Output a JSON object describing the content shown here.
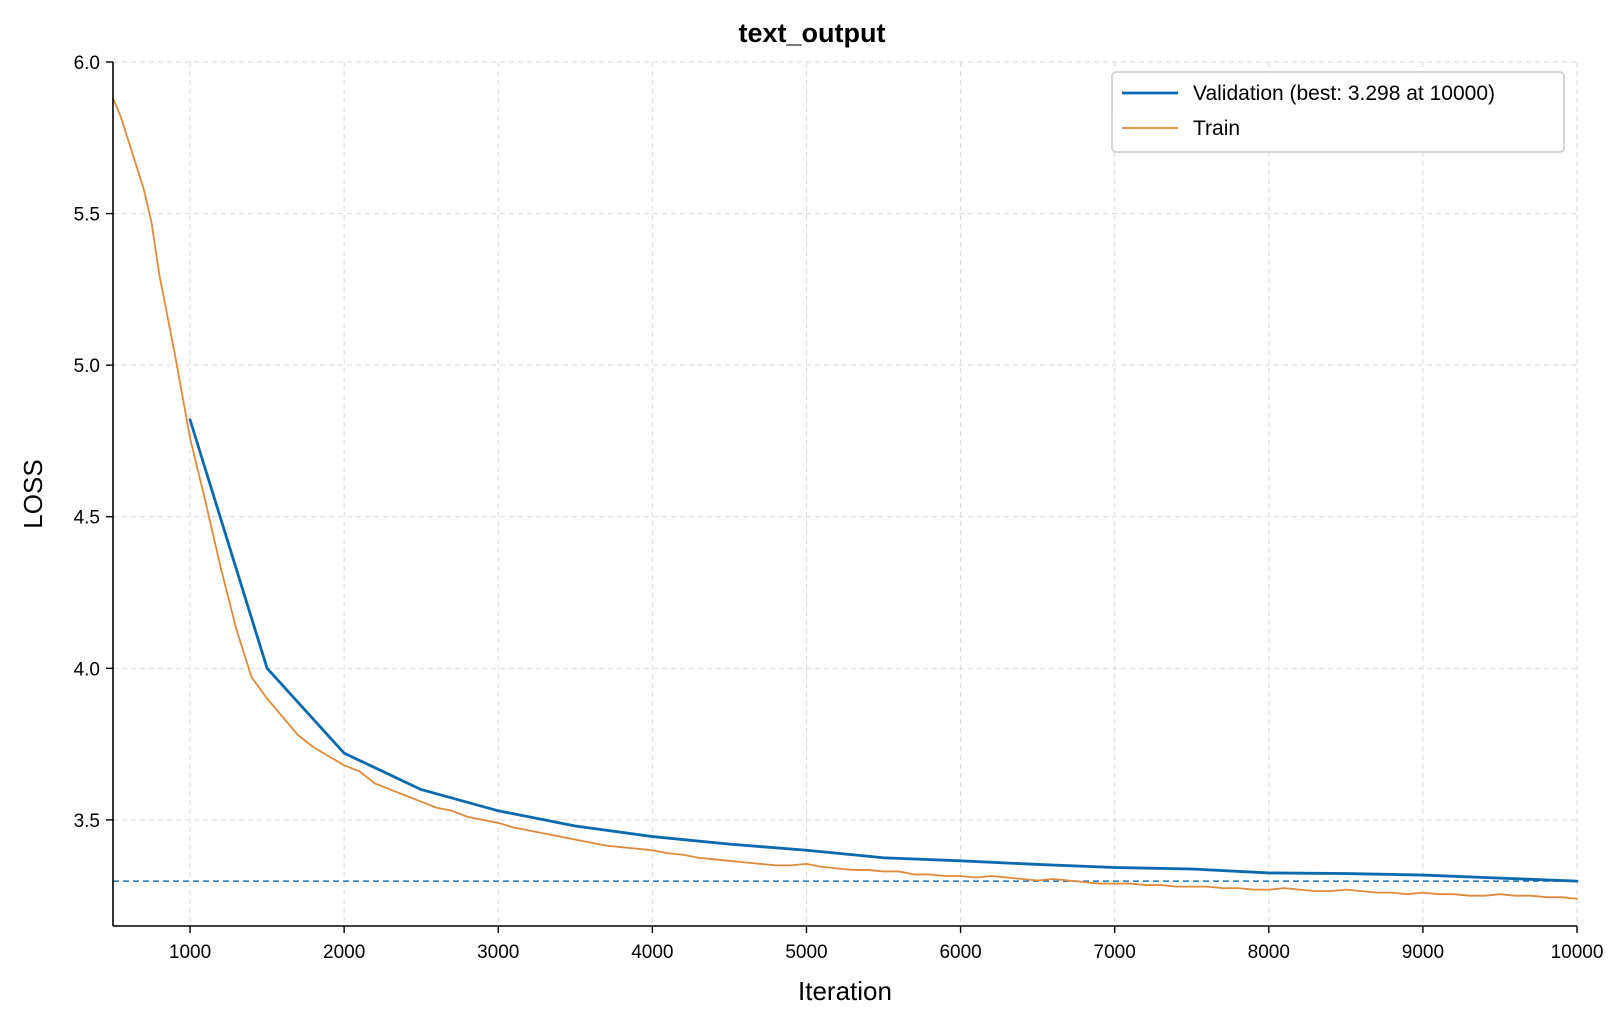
{
  "chart_data": {
    "type": "line",
    "title": "text_output",
    "xlabel": "Iteration",
    "ylabel": "LOSS",
    "xlim": [
      500,
      10000
    ],
    "ylim": [
      3.15,
      6.0
    ],
    "x_ticks": [
      1000,
      2000,
      3000,
      4000,
      5000,
      6000,
      7000,
      8000,
      9000,
      10000
    ],
    "y_ticks": [
      3.5,
      4.0,
      4.5,
      5.0,
      5.5,
      6.0
    ],
    "x_tick_labels": [
      "1000",
      "2000",
      "3000",
      "4000",
      "5000",
      "6000",
      "7000",
      "8000",
      "9000",
      "10000"
    ],
    "y_tick_labels": [
      "3.5",
      "4.0",
      "4.5",
      "5.0",
      "5.5",
      "6.0"
    ],
    "grid": true,
    "legend_position": "top-right",
    "reference_line": {
      "y": 3.298,
      "style": "dashed",
      "color": "#1f77b4"
    },
    "series": [
      {
        "name": "Validation (best: 3.298 at 10000)",
        "color": "#0b6aad",
        "x": [
          1000,
          1500,
          2000,
          2500,
          3000,
          3500,
          4000,
          4500,
          5000,
          5500,
          6000,
          6500,
          7000,
          7500,
          8000,
          8500,
          9000,
          9500,
          10000
        ],
        "y": [
          4.82,
          4.0,
          3.72,
          3.6,
          3.53,
          3.48,
          3.445,
          3.42,
          3.4,
          3.375,
          3.365,
          3.353,
          3.343,
          3.338,
          3.325,
          3.323,
          3.318,
          3.308,
          3.298
        ]
      },
      {
        "name": "Train",
        "color": "#e08a3c",
        "x": [
          500,
          550,
          600,
          650,
          700,
          750,
          800,
          850,
          900,
          950,
          1000,
          1100,
          1200,
          1300,
          1400,
          1500,
          1600,
          1700,
          1800,
          1900,
          2000,
          2100,
          2200,
          2300,
          2400,
          2500,
          2600,
          2700,
          2800,
          2900,
          3000,
          3100,
          3200,
          3300,
          3400,
          3500,
          3600,
          3700,
          3800,
          3900,
          4000,
          4100,
          4200,
          4300,
          4400,
          4500,
          4600,
          4700,
          4800,
          4900,
          5000,
          5100,
          5200,
          5300,
          5400,
          5500,
          5600,
          5700,
          5800,
          5900,
          6000,
          6100,
          6200,
          6300,
          6400,
          6500,
          6600,
          6700,
          6800,
          6900,
          7000,
          7100,
          7200,
          7300,
          7400,
          7500,
          7600,
          7700,
          7800,
          7900,
          8000,
          8100,
          8200,
          8300,
          8400,
          8500,
          8600,
          8700,
          8800,
          8900,
          9000,
          9100,
          9200,
          9300,
          9400,
          9500,
          9600,
          9700,
          9800,
          9900,
          10000
        ],
        "y": [
          5.88,
          5.82,
          5.74,
          5.66,
          5.58,
          5.47,
          5.3,
          5.17,
          5.04,
          4.9,
          4.76,
          4.55,
          4.33,
          4.13,
          3.97,
          3.9,
          3.84,
          3.78,
          3.74,
          3.71,
          3.68,
          3.66,
          3.62,
          3.6,
          3.58,
          3.56,
          3.54,
          3.53,
          3.51,
          3.5,
          3.49,
          3.475,
          3.465,
          3.455,
          3.445,
          3.435,
          3.425,
          3.415,
          3.41,
          3.405,
          3.4,
          3.39,
          3.385,
          3.375,
          3.37,
          3.365,
          3.36,
          3.355,
          3.35,
          3.35,
          3.355,
          3.345,
          3.34,
          3.335,
          3.335,
          3.33,
          3.33,
          3.32,
          3.32,
          3.315,
          3.315,
          3.31,
          3.315,
          3.31,
          3.305,
          3.3,
          3.305,
          3.3,
          3.295,
          3.29,
          3.29,
          3.29,
          3.285,
          3.285,
          3.28,
          3.28,
          3.28,
          3.275,
          3.275,
          3.27,
          3.27,
          3.275,
          3.27,
          3.265,
          3.265,
          3.27,
          3.265,
          3.26,
          3.26,
          3.255,
          3.26,
          3.255,
          3.255,
          3.25,
          3.25,
          3.255,
          3.25,
          3.25,
          3.245,
          3.245,
          3.24
        ]
      }
    ]
  }
}
